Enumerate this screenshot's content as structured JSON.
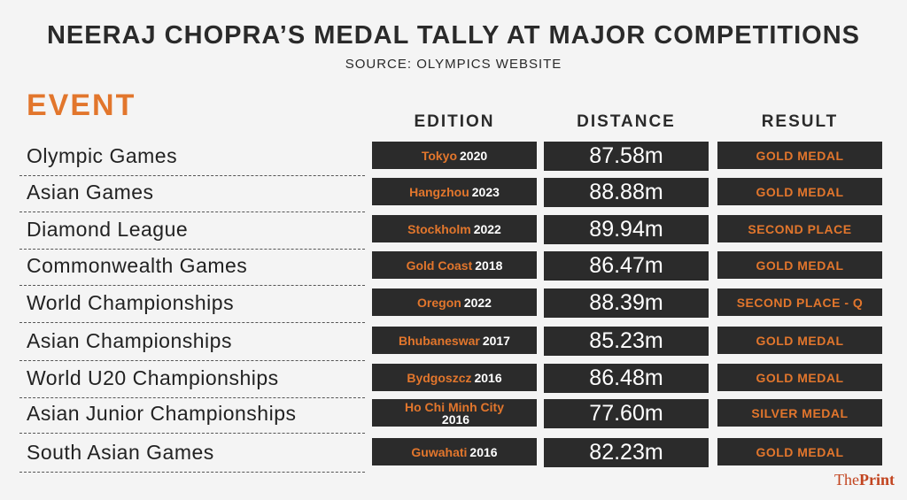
{
  "title": "NEERAJ CHOPRA’S MEDAL TALLY AT MAJOR COMPETITIONS",
  "source": "SOURCE: OLYMPICS WEBSITE",
  "logo": {
    "the": "The",
    "print": "Print"
  },
  "colors": {
    "accent": "#e2762c",
    "box": "#2b2b2b",
    "text": "#222222"
  },
  "chart_data": {
    "type": "table",
    "columns": [
      "EVENT",
      "EDITION",
      "DISTANCE",
      "RESULT"
    ],
    "rows": [
      {
        "event": "Olympic Games",
        "city": "Tokyo",
        "year": "2020",
        "distance": "87.58m",
        "result": "GOLD MEDAL"
      },
      {
        "event": "Asian Games",
        "city": "Hangzhou",
        "year": "2023",
        "distance": "88.88m",
        "result": "GOLD MEDAL"
      },
      {
        "event": "Diamond League",
        "city": "Stockholm",
        "year": "2022",
        "distance": "89.94m",
        "result": "SECOND PLACE"
      },
      {
        "event": "Commonwealth Games",
        "city": "Gold Coast",
        "year": "2018",
        "distance": "86.47m",
        "result": "GOLD MEDAL"
      },
      {
        "event": "World Championships",
        "city": "Oregon",
        "year": "2022",
        "distance": "88.39m",
        "result": "SECOND PLACE - Q"
      },
      {
        "event": "Asian Championships",
        "city": "Bhubaneswar",
        "year": "2017",
        "distance": "85.23m",
        "result": "GOLD MEDAL"
      },
      {
        "event": "World U20 Championships",
        "city": "Bydgoszcz",
        "year": "2016",
        "distance": "86.48m",
        "result": "GOLD MEDAL"
      },
      {
        "event": "Asian Junior Championships",
        "city": "Ho Chi Minh City",
        "year": "2016",
        "distance": "77.60m",
        "result": "SILVER MEDAL"
      },
      {
        "event": "South Asian Games",
        "city": "Guwahati",
        "year": "2016",
        "distance": "82.23m",
        "result": "GOLD MEDAL"
      }
    ]
  }
}
